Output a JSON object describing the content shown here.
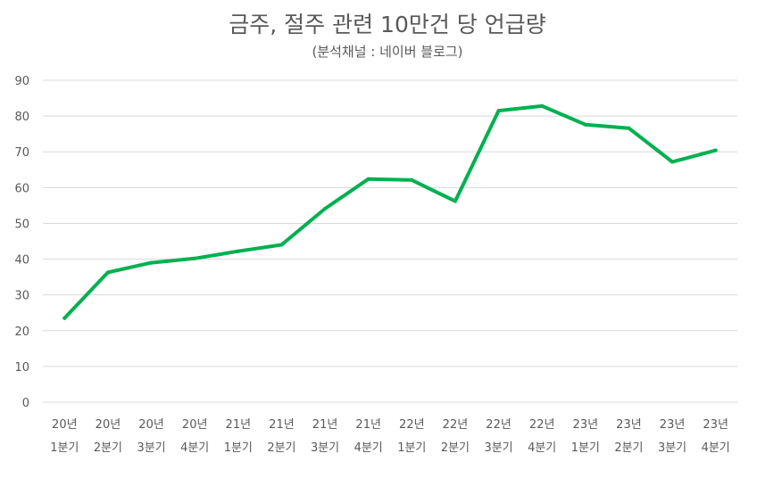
{
  "chart_data": {
    "type": "line",
    "title": "금주, 절주 관련 10만건 당 언급량",
    "subtitle": "(분석채널 : 네이버 블로그)",
    "xlabel": "",
    "ylabel": "",
    "ylim": [
      0,
      90
    ],
    "yticks": [
      0,
      10,
      20,
      30,
      40,
      50,
      60,
      70,
      80,
      90
    ],
    "grid": true,
    "legend": "none",
    "line_color": "#00b050",
    "categories": [
      [
        "20년",
        "1분기"
      ],
      [
        "20년",
        "2분기"
      ],
      [
        "20년",
        "3분기"
      ],
      [
        "20년",
        "4분기"
      ],
      [
        "21년",
        "1분기"
      ],
      [
        "21년",
        "2분기"
      ],
      [
        "21년",
        "3분기"
      ],
      [
        "21년",
        "4분기"
      ],
      [
        "22년",
        "1분기"
      ],
      [
        "22년",
        "2분기"
      ],
      [
        "22년",
        "3분기"
      ],
      [
        "22년",
        "4분기"
      ],
      [
        "23년",
        "1분기"
      ],
      [
        "23년",
        "2분기"
      ],
      [
        "23년",
        "3분기"
      ],
      [
        "23년",
        "4분기"
      ]
    ],
    "series": [
      {
        "name": "언급량",
        "values": [
          23.5,
          36.3,
          39.0,
          40.2,
          42.2,
          44.0,
          54.1,
          62.4,
          62.1,
          56.2,
          81.5,
          82.8,
          77.6,
          76.6,
          67.2,
          70.4
        ]
      }
    ]
  }
}
